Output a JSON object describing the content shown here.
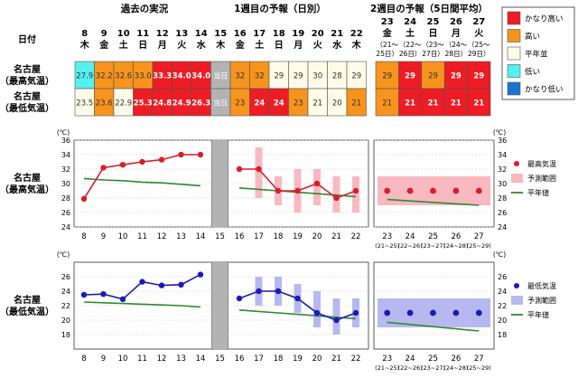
{
  "headers": {
    "past": "過去の実況",
    "week1": "1週目の予報（日別）",
    "week2": "2週目の予報（5日間平均）"
  },
  "row_labels": {
    "date": "日付",
    "max_line1": "名古屋",
    "max_line2": "（最高気温）",
    "min_line1": "名古屋",
    "min_line2": "（最低気温）",
    "today": "当日"
  },
  "legend_levels": [
    {
      "label": "かなり高い",
      "color": "#ee1c25"
    },
    {
      "label": "高い",
      "color": "#f7941d"
    },
    {
      "label": "平年並",
      "color": "#fffbe9"
    },
    {
      "label": "低い",
      "color": "#55f0f0"
    },
    {
      "label": "かなり低い",
      "color": "#1a75d2"
    }
  ],
  "days": [
    {
      "d": "8",
      "w": "木"
    },
    {
      "d": "9",
      "w": "金"
    },
    {
      "d": "10",
      "w": "土"
    },
    {
      "d": "11",
      "w": "日"
    },
    {
      "d": "12",
      "w": "月"
    },
    {
      "d": "13",
      "w": "火"
    },
    {
      "d": "14",
      "w": "水"
    },
    {
      "d": "15",
      "w": "木"
    },
    {
      "d": "16",
      "w": "金"
    },
    {
      "d": "17",
      "w": "土"
    },
    {
      "d": "18",
      "w": "日"
    },
    {
      "d": "19",
      "w": "月"
    },
    {
      "d": "20",
      "w": "火"
    },
    {
      "d": "21",
      "w": "水"
    },
    {
      "d": "22",
      "w": "木"
    }
  ],
  "periods": [
    {
      "d": "23",
      "w": "金",
      "r1": "（21～",
      "r2": "25日）"
    },
    {
      "d": "24",
      "w": "土",
      "r1": "（22～",
      "r2": "26日）"
    },
    {
      "d": "25",
      "w": "日",
      "r1": "（23～",
      "r2": "27日）"
    },
    {
      "d": "26",
      "w": "月",
      "r1": "（24～",
      "r2": "28日）"
    },
    {
      "d": "27",
      "w": "火",
      "r1": "（25～",
      "r2": "29日）"
    }
  ],
  "max_cells": [
    {
      "v": "27.9",
      "c": "#55f0f0"
    },
    {
      "v": "32.2",
      "c": "#f7941d"
    },
    {
      "v": "32.6",
      "c": "#f7941d"
    },
    {
      "v": "33.0",
      "c": "#f7941d"
    },
    {
      "v": "33.3",
      "c": "#ee1c25"
    },
    {
      "v": "34.0",
      "c": "#ee1c25"
    },
    {
      "v": "34.0",
      "c": "#ee1c25"
    },
    {
      "v": "当日",
      "c": "#b3b3b3"
    },
    {
      "v": "32",
      "c": "#f7941d"
    },
    {
      "v": "32",
      "c": "#f7941d"
    },
    {
      "v": "29",
      "c": "#fffbe9"
    },
    {
      "v": "29",
      "c": "#fffbe9"
    },
    {
      "v": "30",
      "c": "#fffbe9"
    },
    {
      "v": "28",
      "c": "#fffbe9"
    },
    {
      "v": "29",
      "c": "#fffbe9"
    }
  ],
  "min_cells": [
    {
      "v": "23.5",
      "c": "#fffbe9"
    },
    {
      "v": "23.6",
      "c": "#f7941d"
    },
    {
      "v": "22.9",
      "c": "#fffbe9"
    },
    {
      "v": "25.3",
      "c": "#ee1c25"
    },
    {
      "v": "24.8",
      "c": "#ee1c25"
    },
    {
      "v": "24.9",
      "c": "#ee1c25"
    },
    {
      "v": "26.3",
      "c": "#ee1c25"
    },
    {
      "v": "当日",
      "c": "#b3b3b3"
    },
    {
      "v": "23",
      "c": "#f7941d"
    },
    {
      "v": "24",
      "c": "#ee1c25"
    },
    {
      "v": "24",
      "c": "#ee1c25"
    },
    {
      "v": "23",
      "c": "#f7941d"
    },
    {
      "v": "21",
      "c": "#fffbe9"
    },
    {
      "v": "20",
      "c": "#fffbe9"
    },
    {
      "v": "21",
      "c": "#f7941d"
    }
  ],
  "max_w2_cells": [
    {
      "v": "29",
      "c": "#f7941d"
    },
    {
      "v": "29",
      "c": "#ee1c25"
    },
    {
      "v": "29",
      "c": "#f7941d"
    },
    {
      "v": "29",
      "c": "#ee1c25"
    },
    {
      "v": "29",
      "c": "#ee1c25"
    }
  ],
  "min_w2_cells": [
    {
      "v": "21",
      "c": "#f7941d"
    },
    {
      "v": "21",
      "c": "#ee1c25"
    },
    {
      "v": "21",
      "c": "#ee1c25"
    },
    {
      "v": "21",
      "c": "#ee1c25"
    },
    {
      "v": "21",
      "c": "#ee1c25"
    }
  ],
  "chart_data": [
    {
      "type": "line",
      "station_label_1": "名古屋",
      "station_label_2": "（最高気温）",
      "unit": "(℃)",
      "ylim": [
        24,
        36
      ],
      "yticks": [
        24,
        26,
        28,
        30,
        32,
        34,
        36
      ],
      "x_daily": [
        8,
        9,
        10,
        11,
        12,
        13,
        14,
        15,
        16,
        17,
        18,
        19,
        20,
        21,
        22
      ],
      "observed": [
        27.9,
        32.2,
        32.6,
        33.0,
        33.3,
        34.0,
        34.0
      ],
      "forecast": [
        32,
        32,
        29,
        29,
        30,
        28,
        29
      ],
      "forecast_days": [
        16,
        17,
        18,
        19,
        20,
        21,
        22
      ],
      "range": [
        [
          32,
          32
        ],
        [
          28,
          35
        ],
        [
          27,
          31
        ],
        [
          26,
          32
        ],
        [
          27,
          32
        ],
        [
          26,
          31
        ],
        [
          26,
          31
        ]
      ],
      "normal_daily": [
        30.7,
        30.5,
        30.4,
        30.2,
        30.1,
        29.9,
        29.7,
        29.6,
        29.4,
        29.2,
        29.0,
        28.8,
        28.6,
        28.4,
        28.2
      ],
      "week2_x": [
        "23",
        "24",
        "25",
        "26",
        "27"
      ],
      "week2_x_sub": [
        "(21~25)",
        "(22~26)",
        "(23~27)",
        "(24~28)",
        "(25~29)"
      ],
      "week2_forecast": [
        29,
        29,
        29,
        29,
        29
      ],
      "week2_range": [
        [
          27,
          31
        ],
        [
          27,
          31
        ],
        [
          27,
          31
        ],
        [
          27,
          31
        ],
        [
          27,
          31
        ]
      ],
      "week2_normal": [
        27.8,
        27.6,
        27.4,
        27.2,
        27.0
      ],
      "legend": [
        "最高気温",
        "予測範囲",
        "平年値"
      ],
      "point_color": "#d81e2b",
      "band_color": "#f9b9c0",
      "normal_color": "#2f8a2f"
    },
    {
      "type": "line",
      "station_label_1": "名古屋",
      "station_label_2": "（最低気温）",
      "unit": "(℃)",
      "ylim": [
        16,
        28
      ],
      "yticks": [
        18,
        20,
        22,
        24,
        26
      ],
      "x_daily": [
        8,
        9,
        10,
        11,
        12,
        13,
        14,
        15,
        16,
        17,
        18,
        19,
        20,
        21,
        22
      ],
      "observed": [
        23.5,
        23.6,
        22.9,
        25.3,
        24.8,
        24.9,
        26.3
      ],
      "forecast": [
        23,
        24,
        24,
        23,
        21,
        20,
        21
      ],
      "forecast_days": [
        16,
        17,
        18,
        19,
        20,
        21,
        22
      ],
      "range": [
        [
          23,
          23
        ],
        [
          22,
          26
        ],
        [
          22,
          26
        ],
        [
          21,
          25
        ],
        [
          19,
          24
        ],
        [
          18,
          23
        ],
        [
          19,
          23
        ]
      ],
      "normal_daily": [
        22.5,
        22.4,
        22.3,
        22.2,
        22.1,
        22.0,
        21.8,
        21.6,
        21.4,
        21.2,
        21.0,
        20.8,
        20.6,
        20.4,
        20.2
      ],
      "week2_x": [
        "23",
        "24",
        "25",
        "26",
        "27"
      ],
      "week2_x_sub": [
        "(21~25)",
        "(22~26)",
        "(23~27)",
        "(24~28)",
        "(25~29)"
      ],
      "week2_forecast": [
        21,
        21,
        21,
        21,
        21
      ],
      "week2_range": [
        [
          19,
          23
        ],
        [
          19,
          23
        ],
        [
          19,
          23
        ],
        [
          19,
          23
        ],
        [
          19,
          23
        ]
      ],
      "week2_normal": [
        19.7,
        19.4,
        19.1,
        18.8,
        18.5
      ],
      "legend": [
        "最低気温",
        "予測範囲",
        "平年値"
      ],
      "point_color": "#1a1ab8",
      "band_color": "#b8b8f0",
      "normal_color": "#2f8a2f"
    }
  ]
}
